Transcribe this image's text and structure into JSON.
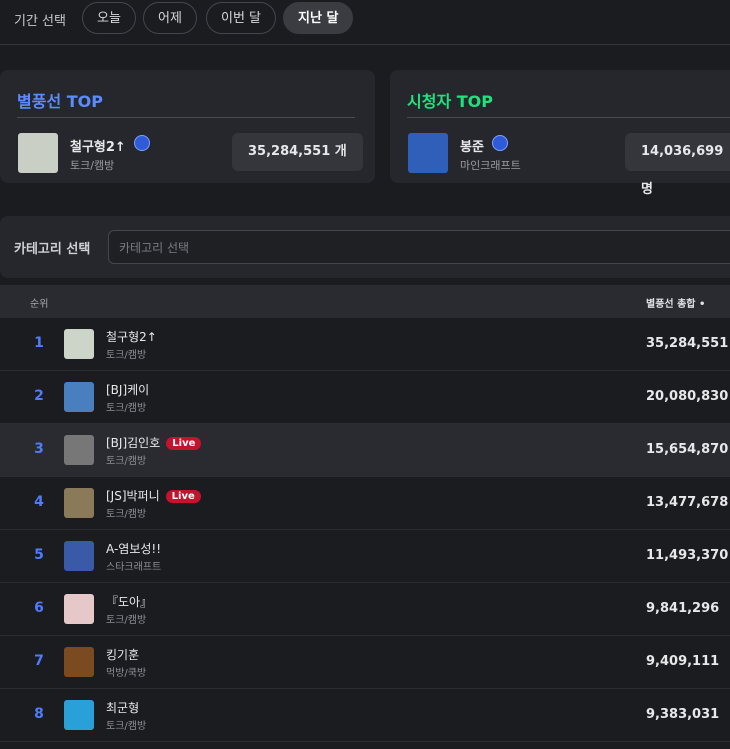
{
  "filter": {
    "label": "기간 선택",
    "options": [
      "오늘",
      "어제",
      "이번 달",
      "지난 달"
    ],
    "active": 3
  },
  "top_cards": [
    {
      "title": "별풍선 TOP",
      "name": "철구형2↑",
      "category": "토크/캠방",
      "value": "35,284,551 개"
    },
    {
      "title": "시청자 TOP",
      "name": "봉준",
      "category": "마인크래프트",
      "value": "14,036,699 명"
    }
  ],
  "category_filter": {
    "label": "카테고리 선택",
    "placeholder": "카테고리 선택"
  },
  "table": {
    "columns": [
      "순위",
      "별풍선 총합"
    ],
    "rows": [
      {
        "rank": 1,
        "name": "철구형2↑",
        "category": "토크/캠방",
        "total": "35,284,551"
      },
      {
        "rank": 2,
        "name": "[BJ]케이",
        "category": "토크/캠방",
        "total": "20,080,830"
      },
      {
        "rank": 3,
        "name": "[BJ]김인호",
        "category": "토크/캠방",
        "badge": "Live",
        "total": "15,654,870"
      },
      {
        "rank": 4,
        "name": "[JS]박퍼니",
        "category": "토크/캠방",
        "badge": "Live",
        "total": "13,477,678"
      },
      {
        "rank": 5,
        "name": "A-염보성!!",
        "category": "스타크래프트",
        "total": "11,493,370"
      },
      {
        "rank": 6,
        "name": "『도아』",
        "category": "토크/캠방",
        "total": "9,841,296"
      },
      {
        "rank": 7,
        "name": "킹기훈",
        "category": "먹방/쿡방",
        "total": "9,409,111"
      },
      {
        "rank": 8,
        "name": "최군형",
        "category": "토크/캠방",
        "total": "9,383,031"
      }
    ]
  }
}
